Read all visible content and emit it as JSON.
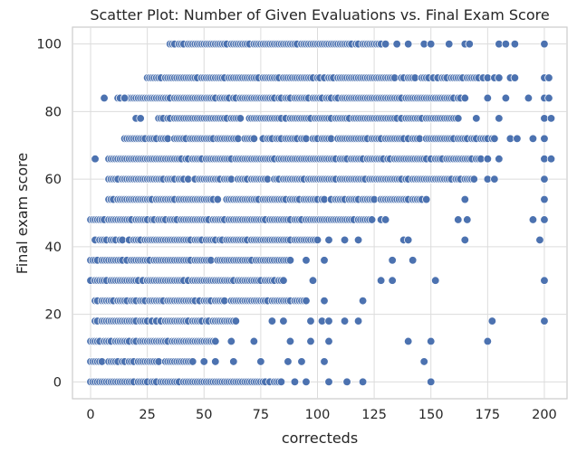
{
  "chart_data": {
    "type": "scatter",
    "title": "Scatter Plot: Number of Given Evaluations vs. Final Exam Score",
    "xlabel": "correcteds",
    "ylabel": "Final exam score",
    "xlim": [
      -8,
      210
    ],
    "ylim": [
      -5,
      105
    ],
    "xticks": [
      0,
      25,
      50,
      75,
      100,
      125,
      150,
      175,
      200
    ],
    "yticks": [
      0,
      20,
      40,
      60,
      80,
      100
    ],
    "grid": true,
    "marker_color": "#4c72b0",
    "marker_edge_color": "#ffffff",
    "bands": [
      {
        "y": 100,
        "x_range": [
          35,
          130
        ],
        "extra_x": [
          135,
          140,
          147,
          150,
          158,
          165,
          167,
          180,
          183,
          187,
          200
        ]
      },
      {
        "y": 90,
        "x_range": [
          25,
          175
        ],
        "extra_x": [
          178,
          180,
          185,
          187,
          200,
          202
        ]
      },
      {
        "y": 84,
        "x_range": [
          12,
          165
        ],
        "extra_x": [
          6,
          15,
          175,
          183,
          193,
          200,
          202
        ]
      },
      {
        "y": 78,
        "x_range": [
          30,
          162
        ],
        "extra_x": [
          20,
          22,
          170,
          180,
          200,
          203
        ]
      },
      {
        "y": 72,
        "x_range": [
          15,
          178
        ],
        "extra_x": [
          185,
          188,
          195,
          200
        ]
      },
      {
        "y": 66,
        "x_range": [
          7,
          172
        ],
        "extra_x": [
          2,
          175,
          180,
          200,
          203
        ]
      },
      {
        "y": 60,
        "x_range": [
          8,
          170
        ],
        "extra_x": [
          175,
          178,
          200
        ]
      },
      {
        "y": 54,
        "x_range": [
          8,
          148
        ],
        "extra_x": [
          165,
          200
        ]
      },
      {
        "y": 48,
        "x_range": [
          0,
          125
        ],
        "extra_x": [
          128,
          130,
          162,
          166,
          195,
          200
        ]
      },
      {
        "y": 42,
        "x_range": [
          2,
          100
        ],
        "extra_x": [
          105,
          112,
          118,
          138,
          140,
          165,
          198
        ]
      },
      {
        "y": 36,
        "x_range": [
          0,
          88
        ],
        "extra_x": [
          95,
          103,
          133,
          142
        ]
      },
      {
        "y": 30,
        "x_range": [
          0,
          85
        ],
        "extra_x": [
          98,
          128,
          133,
          152,
          200
        ]
      },
      {
        "y": 24,
        "x_range": [
          2,
          95
        ],
        "extra_x": [
          103,
          120
        ]
      },
      {
        "y": 18,
        "x_range": [
          2,
          65
        ],
        "extra_x": [
          80,
          85,
          97,
          102,
          105,
          112,
          118,
          177,
          200
        ]
      },
      {
        "y": 12,
        "x_range": [
          0,
          55
        ],
        "extra_x": [
          62,
          72,
          88,
          97,
          105,
          140,
          150,
          175
        ]
      },
      {
        "y": 6,
        "x_range": [
          0,
          45
        ],
        "extra_x": [
          50,
          55,
          63,
          75,
          87,
          93,
          103,
          147
        ]
      },
      {
        "y": 0,
        "x_range": [
          0,
          85
        ],
        "extra_x": [
          90,
          95,
          105,
          113,
          120,
          150
        ]
      }
    ]
  }
}
